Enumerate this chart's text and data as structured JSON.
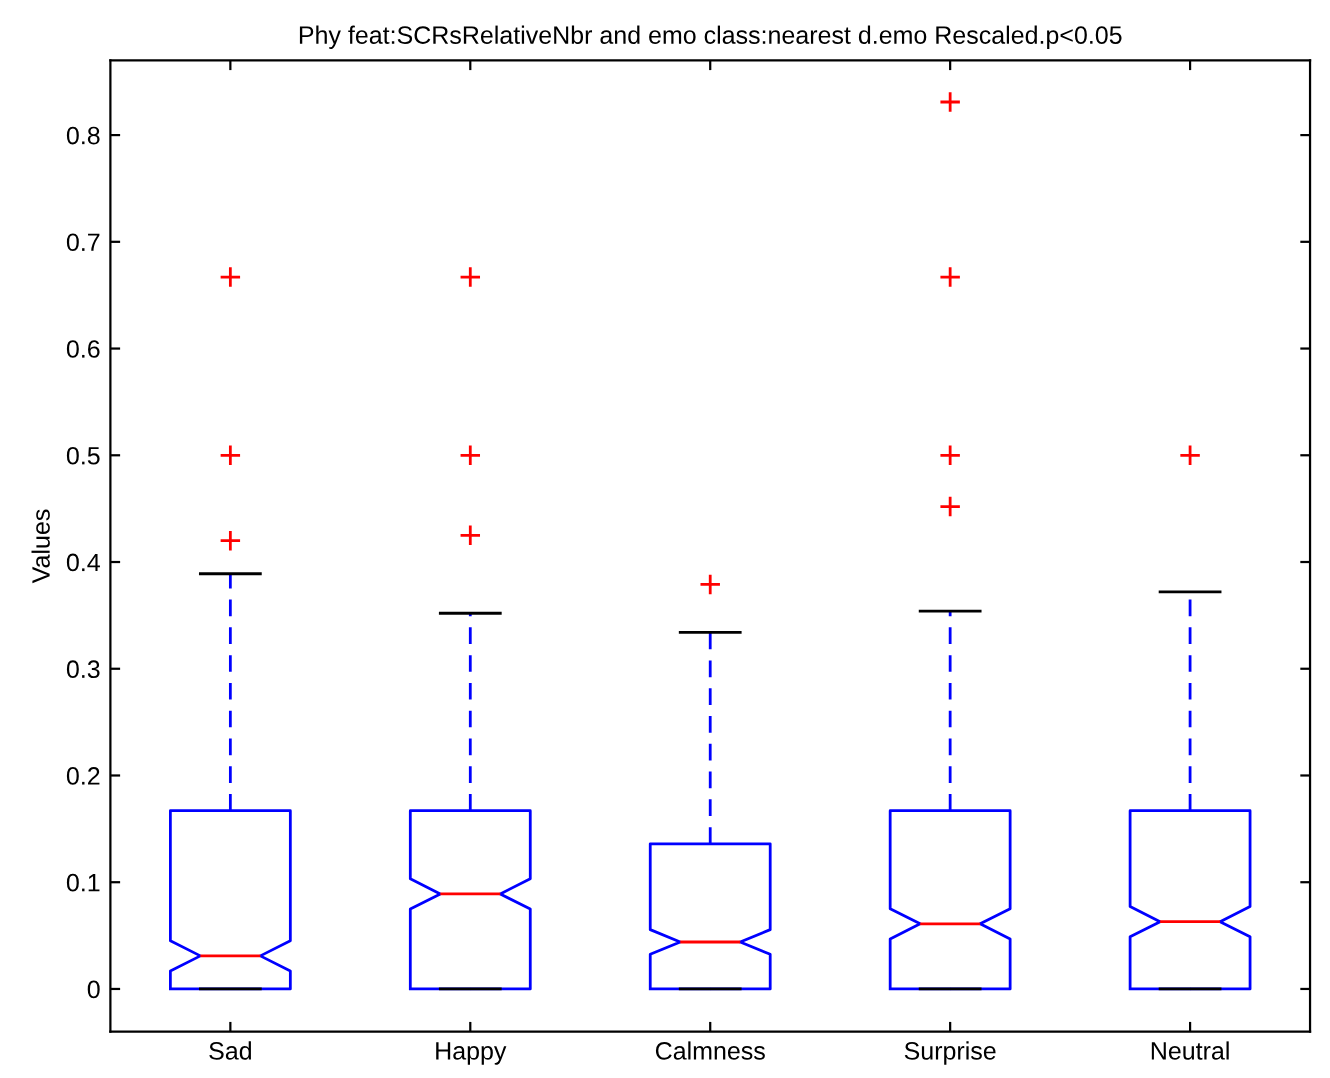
{
  "chart_data": {
    "type": "box",
    "title": "Phy feat:SCRsRelativeNbr and emo class:nearest d.emo Rescaled.p<0.05",
    "ylabel": "Values",
    "categories": [
      "Sad",
      "Happy",
      "Calmness",
      "Surprise",
      "Neutral"
    ],
    "boxes": [
      {
        "low": 0,
        "q1": 0,
        "median": 0.031,
        "q3": 0.167,
        "high": 0.389,
        "outliers": [
          0.667,
          0.5,
          0.42
        ]
      },
      {
        "low": 0,
        "q1": 0,
        "median": 0.089,
        "q3": 0.167,
        "high": 0.352,
        "outliers": [
          0.667,
          0.5,
          0.425
        ]
      },
      {
        "low": 0,
        "q1": 0,
        "median": 0.044,
        "q3": 0.136,
        "high": 0.334,
        "outliers": [
          0.379
        ]
      },
      {
        "low": 0,
        "q1": 0,
        "median": 0.061,
        "q3": 0.167,
        "high": 0.354,
        "outliers": [
          0.831,
          0.667,
          0.5,
          0.452
        ]
      },
      {
        "low": 0,
        "q1": 0,
        "median": 0.063,
        "q3": 0.167,
        "high": 0.372,
        "outliers": [
          0.5
        ]
      }
    ],
    "color": "#0000ff",
    "ylim": [
      -0.04,
      0.87
    ],
    "yticks": [
      0,
      0.1,
      0.2,
      0.3,
      0.4,
      0.5,
      0.6,
      0.7,
      0.8
    ],
    "grid": false,
    "legend": false
  }
}
